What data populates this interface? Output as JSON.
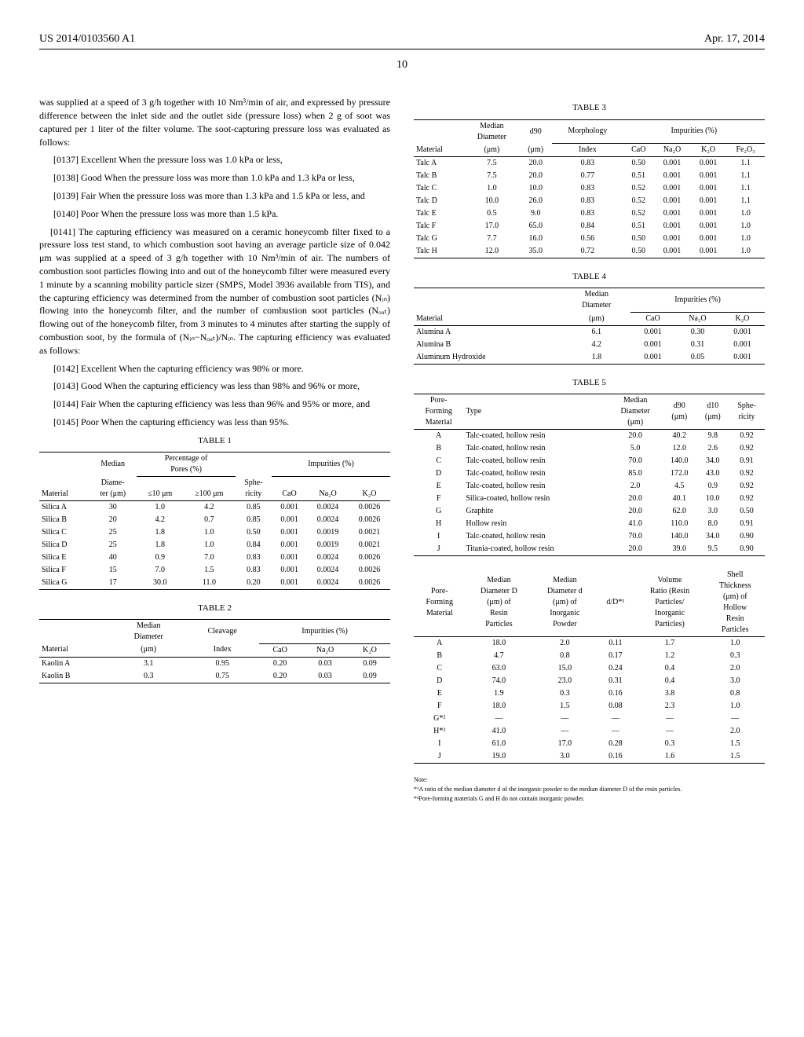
{
  "header": {
    "left": "US 2014/0103560 A1",
    "right": "Apr. 17, 2014",
    "page": "10"
  },
  "left_col": {
    "p0": "was supplied at a speed of 3 g/h together with 10 Nm³/min of air, and expressed by pressure difference between the inlet side and the outlet side (pressure loss) when 2 g of soot was captured per 1 liter of the filter volume. The soot-capturing pressure loss was evaluated as follows:",
    "i137": "[0137]   Excellent When the pressure loss was 1.0 kPa or less,",
    "i138": "[0138]   Good When the pressure loss was more than 1.0 kPa and 1.3 kPa or less,",
    "i139": "[0139]   Fair When the pressure loss was more than 1.3 kPa and 1.5 kPa or less, and",
    "i140": "[0140]   Poor When the pressure loss was more than 1.5 kPa.",
    "p141": "[0141]   The capturing efficiency was measured on a ceramic honeycomb filter fixed to a pressure loss test stand, to which combustion soot having an average particle size of 0.042 μm was supplied at a speed of 3 g/h together with 10 Nm³/min of air. The numbers of combustion soot particles flowing into and out of the honeycomb filter were measured every 1 minute by a scanning mobility particle sizer (SMPS, Model 3936 available from TIS), and the capturing efficiency was determined from the number of combustion soot particles (Nᵢₙ) flowing into the honeycomb filter, and the number of combustion soot particles (Nₒᵤₜ) flowing out of the honeycomb filter, from 3 minutes to 4 minutes after starting the supply of combustion soot, by the formula of (Nᵢₙ−Nₒᵤₜ)/Nᵢₙ. The capturing efficiency was evaluated as follows:",
    "i142": "[0142]   Excellent When the capturing efficiency was 98% or more.",
    "i143": "[0143]   Good When the capturing efficiency was less than 98% and 96% or more,",
    "i144": "[0144]   Fair When the capturing efficiency was less than 96% and 95% or more, and",
    "i145": "[0145]   Poor When the capturing efficiency was less than 95%."
  },
  "table1": {
    "title": "TABLE 1",
    "rows": [
      [
        "Silica A",
        "30",
        "1.0",
        "4.2",
        "0.85",
        "0.001",
        "0.0024",
        "0.0026"
      ],
      [
        "Silica B",
        "20",
        "4.2",
        "0.7",
        "0.85",
        "0.001",
        "0.0024",
        "0.0026"
      ],
      [
        "Silica C",
        "25",
        "1.8",
        "1.0",
        "0.50",
        "0.001",
        "0.0019",
        "0.0021"
      ],
      [
        "Silica D",
        "25",
        "1.8",
        "1.0",
        "0.84",
        "0.001",
        "0.0019",
        "0.0021"
      ],
      [
        "Silica E",
        "40",
        "0.9",
        "7.0",
        "0.83",
        "0.001",
        "0.0024",
        "0.0026"
      ],
      [
        "Silica F",
        "15",
        "7.0",
        "1.5",
        "0.83",
        "0.001",
        "0.0024",
        "0.0026"
      ],
      [
        "Silica G",
        "17",
        "30.0",
        "11.0",
        "0.20",
        "0.001",
        "0.0024",
        "0.0026"
      ]
    ]
  },
  "table2": {
    "title": "TABLE 2",
    "rows": [
      [
        "Kaolin A",
        "3.1",
        "0.95",
        "0.20",
        "0.03",
        "0.09"
      ],
      [
        "Kaolin B",
        "0.3",
        "0.75",
        "0.20",
        "0.03",
        "0.09"
      ]
    ]
  },
  "table3": {
    "title": "TABLE 3",
    "rows": [
      [
        "Talc A",
        "7.5",
        "20.0",
        "0.83",
        "0.50",
        "0.001",
        "0.001",
        "1.1"
      ],
      [
        "Talc B",
        "7.5",
        "20.0",
        "0.77",
        "0.51",
        "0.001",
        "0.001",
        "1.1"
      ],
      [
        "Talc C",
        "1.0",
        "10.0",
        "0.83",
        "0.52",
        "0.001",
        "0.001",
        "1.1"
      ],
      [
        "Talc D",
        "10.0",
        "26.0",
        "0.83",
        "0.52",
        "0.001",
        "0.001",
        "1.1"
      ],
      [
        "Talc E",
        "0.5",
        "9.0",
        "0.83",
        "0.52",
        "0.001",
        "0.001",
        "1.0"
      ],
      [
        "Talc F",
        "17.0",
        "65.0",
        "0.84",
        "0.51",
        "0.001",
        "0.001",
        "1.0"
      ],
      [
        "Talc G",
        "7.7",
        "16.0",
        "0.56",
        "0.50",
        "0.001",
        "0.001",
        "1.0"
      ],
      [
        "Talc H",
        "12.0",
        "35.0",
        "0.72",
        "0.50",
        "0.001",
        "0.001",
        "1.0"
      ]
    ]
  },
  "table4": {
    "title": "TABLE 4",
    "rows": [
      [
        "Alumina A",
        "6.1",
        "0.001",
        "0.30",
        "0.001"
      ],
      [
        "Alumina B",
        "4.2",
        "0.001",
        "0.31",
        "0.001"
      ],
      [
        "Aluminum Hydroxide",
        "1.8",
        "0.001",
        "0.05",
        "0.001"
      ]
    ]
  },
  "table5a": {
    "title": "TABLE 5",
    "head": [
      "Pore-Forming Material",
      "Type",
      "Median Diameter (μm)",
      "d90 (μm)",
      "d10 (μm)",
      "Sphe-ricity"
    ],
    "rows": [
      [
        "A",
        "Talc-coated, hollow resin",
        "20.0",
        "40.2",
        "9.8",
        "0.92"
      ],
      [
        "B",
        "Talc-coated, hollow resin",
        "5.0",
        "12.0",
        "2.6",
        "0.92"
      ],
      [
        "C",
        "Talc-coated, hollow resin",
        "70.0",
        "140.0",
        "34.0",
        "0.91"
      ],
      [
        "D",
        "Talc-coated, hollow resin",
        "85.0",
        "172.0",
        "43.0",
        "0.92"
      ],
      [
        "E",
        "Talc-coated, hollow resin",
        "2.0",
        "4.5",
        "0.9",
        "0.92"
      ],
      [
        "F",
        "Silica-coated, hollow resin",
        "20.0",
        "40.1",
        "10.0",
        "0.92"
      ],
      [
        "G",
        "Graphite",
        "20.0",
        "62.0",
        "3.0",
        "0.50"
      ],
      [
        "H",
        "Hollow resin",
        "41.0",
        "110.0",
        "8.0",
        "0.91"
      ],
      [
        "I",
        "Talc-coated, hollow resin",
        "70.0",
        "140.0",
        "34.0",
        "0.90"
      ],
      [
        "J",
        "Titania-coated, hollow resin",
        "20.0",
        "39.0",
        "9.5",
        "0.90"
      ]
    ]
  },
  "table5b": {
    "rows": [
      [
        "A",
        "18.0",
        "2.0",
        "0.11",
        "1.7",
        "1.0"
      ],
      [
        "B",
        "4.7",
        "0.8",
        "0.17",
        "1.2",
        "0.3"
      ],
      [
        "C",
        "63.0",
        "15.0",
        "0.24",
        "0.4",
        "2.0"
      ],
      [
        "D",
        "74.0",
        "23.0",
        "0.31",
        "0.4",
        "3.0"
      ],
      [
        "E",
        "1.9",
        "0.3",
        "0.16",
        "3.8",
        "0.8"
      ],
      [
        "F",
        "18.0",
        "1.5",
        "0.08",
        "2.3",
        "1.0"
      ],
      [
        "G*²",
        "—",
        "—",
        "—",
        "—",
        "—"
      ],
      [
        "H*²",
        "41.0",
        "—",
        "—",
        "—",
        "2.0"
      ],
      [
        "I",
        "61.0",
        "17.0",
        "0.28",
        "0.3",
        "1.5"
      ],
      [
        "J",
        "19.0",
        "3.0",
        "0.16",
        "1.6",
        "1.5"
      ]
    ]
  },
  "notes": {
    "label": "Note:",
    "n1": "*¹A ratio of the median diameter d of the inorganic powder to the median diameter D of the resin particles.",
    "n2": "*²Pore-forming materials G and H do not contain inorganic powder."
  }
}
